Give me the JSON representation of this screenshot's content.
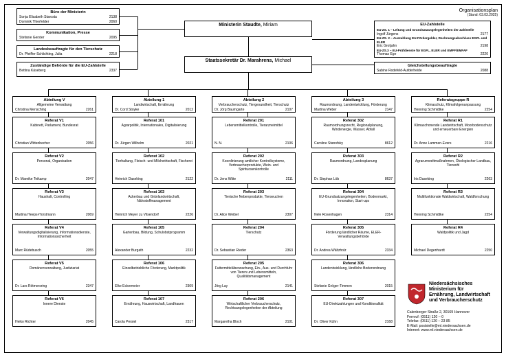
{
  "plan_title": "Organisationsplan",
  "plan_date": "(Stand: 03.03.2025)",
  "minister_box": {
    "title": "Ministerin Staudte, ",
    "title_suffix": "Miriam"
  },
  "staatssekretaer_box": {
    "title": "Staatssekretär Dr. Marahrens, ",
    "title_suffix": "Michael"
  },
  "left1": {
    "title": "Büro der Ministerin",
    "p1": "Sonja Elisabeth Starosta",
    "n1": "2138",
    "p2": "Dominik Thierfelder",
    "n2": "2060"
  },
  "left2": {
    "title": "Kommunikation, Presse",
    "p1": "Stefanie Gerster",
    "n1": "2095"
  },
  "left3": {
    "title": "Landesbeauftragte für den Tierschutz",
    "p1": "Dr. Pfeiffer-Schlichting, Julia",
    "n1": "2218"
  },
  "left4": {
    "title": "Zuständige Behörde für die EU-Zahlstelle",
    "p1": "Bettina Käseberg",
    "n1": "2337"
  },
  "eu": {
    "title": "EU-Zahlstelle",
    "r1t": "EU-ZS. 1 – Leitung und Grundsatzangelegenheiten der Zahlstelle",
    "r1p": "Ingolf Jürgens",
    "r1n": "2177",
    "r2t": "EU-ZS. 2 – Auszahlung EU-Fördergelder, Rechnungsabschluss EGFL und ELER",
    "r2p": "Eric Grotjahn",
    "r2n": "2198",
    "r3t": "EU-ZS.3 – EU-Prüfdienste für EGFL, ELER und EMFF/EMFAF",
    "r3p": "Thomas Ege",
    "r3n": "2220"
  },
  "gleich": {
    "title": "Gleichstellungsbeauftragte",
    "p1": "Sabine Rodefeld-Aufderheide",
    "n1": "2088"
  },
  "colV": {
    "title": "Abteilung V",
    "subtitle": "Allgemeine Verwaltung",
    "lead": "Christina Mensching",
    "lead_n": "2261",
    "r": [
      {
        "t": "Referat V1",
        "s": "Kabinett, Parlament, Bundesrat",
        "p": "Christian Wittenbecher",
        "n": "2056"
      },
      {
        "t": "Referat V2",
        "s": "Personal, Organisation",
        "p": "Dr. Mareike Teikamp",
        "n": "2047"
      },
      {
        "t": "Referat V3",
        "s": "Haushalt, Controlling",
        "p": "Martina Heeps-Horstmann",
        "n": "2069"
      },
      {
        "t": "Referat V4",
        "s": "Verwaltungsdigitalisierung, Informationsdienste, Informationssicherheit",
        "p": "Marc Rüdebusch",
        "n": "2055"
      },
      {
        "t": "Referat V5",
        "s": "Domänenverwaltung, Justiziariat",
        "p": "Dr. Lars Rötmersring",
        "n": "2347"
      },
      {
        "t": "Referat V6",
        "s": "Innere Dienste",
        "p": "Heiko Richter",
        "n": "2045"
      }
    ]
  },
  "col1": {
    "title": "Abteilung 1",
    "subtitle": "Landwirtschaft, Ernährung",
    "lead": "Dr. Cord Stoyke",
    "lead_n": "2012",
    "r": [
      {
        "t": "Referat 101",
        "s": "Agrarpolitik, Internationales, Digitalisierung",
        "p": "Dr. Jürgen Wilhelm",
        "n": "2021"
      },
      {
        "t": "Referat 102",
        "s": "Tierhaltung, Fleisch- und Milchwirtschaft, Fischerei",
        "p": "Heinrich Daseking",
        "n": "2122"
      },
      {
        "t": "Referat 103",
        "s": "Ackerbau und Grünlandwirtschaft, Nährstoffmanagement",
        "p": "Heinrich Meyer zu Vilsendorf",
        "n": "2226"
      },
      {
        "t": "Referat 105",
        "s": "Gartenbau, Bildung, Schulobstprogramm",
        "p": "Alexander Burgath",
        "n": "2232"
      },
      {
        "t": "Referat 106",
        "s": "Einzelbetriebliche Förderung, Marktpolitik",
        "p": "Elke Eckermeier",
        "n": "2309"
      },
      {
        "t": "Referat 107",
        "s": "Ernährung, Hauswirtschaft, Landfrauen",
        "p": "Carola Persiel",
        "n": "2317"
      }
    ]
  },
  "col2": {
    "title": "Abteilung 2",
    "subtitle": "Verbraucherschutz, Tiergesundheit, Tierschutz",
    "lead": "Dr. Jörg Baumgarte",
    "lead_n": "2107",
    "r": [
      {
        "t": "Referat 201",
        "s": "Lebensmittelkontrolle, Tierarzneimittel",
        "p": "N. N.",
        "n": "2106"
      },
      {
        "t": "Referat 202",
        "s": "Koordinierung amtlicher Kontrollsysteme, Verbraucherprodukte, Wein- und Spirituosenkontrolle",
        "p": "Dr. Jens Witte",
        "n": "2111"
      },
      {
        "t": "Referat 203",
        "s": "Tierische Nebenprodukte, Tierseuchen",
        "p": "Dr. Alice Weibel",
        "n": "2307"
      },
      {
        "t": "Referat 204",
        "s": "Tierschutz",
        "p": "Dr. Sebastian Rieder",
        "n": "2363"
      },
      {
        "t": "Referat 205",
        "s": "Futtermittelüberwachung, Ein-, Aus- und Durchfuhr von Tieren und Lebensmitteln, Qualitätsmanagement",
        "p": "Jörg Lay",
        "n": "2141"
      },
      {
        "t": "Referat 206",
        "s": "Wirtschaftlicher Verbraucherschutz, Rechtsangelegenheiten der Abteilung",
        "p": "Margaretha Bloch",
        "n": "2101"
      }
    ]
  },
  "col3": {
    "title": "Abteilung 3",
    "subtitle": "Raumordnung, Landentwicklung, Förderung",
    "lead": "Martina Weber",
    "lead_n": "2147",
    "r": [
      {
        "t": "Referat 302",
        "s": "Raumordnungsrecht, Regionalplanung, Windenergie, Wasser, Abfall",
        "p": "Caroline Stanofsky",
        "n": "8612"
      },
      {
        "t": "Referat 303",
        "s": "Raumordnung, Landesplanung",
        "p": "Dr. Stephan Löb",
        "n": "8637"
      },
      {
        "t": "Referat 304",
        "s": "EU-Grundsatzangelegenheiten, Bodenmarkt, Innovation, Start-ups",
        "p": "Nele Rosenhagen",
        "n": "2314"
      },
      {
        "t": "Referat 305",
        "s": "Förderung ländlicher Räume, ELER-Verwaltungsbehörde",
        "p": "Dr. Andrea Wältzholz",
        "n": "2334"
      },
      {
        "t": "Referat 306",
        "s": "Landentwicklung, ländliche Bodenordnung",
        "p": "Stefanie Gröger-Timmen",
        "n": "2015"
      },
      {
        "t": "Referat 307",
        "s": "EU-Direktzahlungen und Konditionalität",
        "p": "Dr. Oliver Kühn",
        "n": "2168"
      }
    ]
  },
  "colR": {
    "title": "Referatsgruppe R",
    "subtitle": "Klimaschutz, Klimafolgenanpassung",
    "lead": "Henning Schmidtke",
    "lead_n": "2254",
    "r": [
      {
        "t": "Referat R1",
        "s": "Klimaschonende Landwirtschaft, Moorbodenschutz und erneuerbare Energien",
        "p": "Dr. Anne Lammen-Evers",
        "n": "2216"
      },
      {
        "t": "Referat R2",
        "s": "Agrarumweltmaßnahmen, Ökologischer Landbau, Tierwohl",
        "p": "Iris Daseking",
        "n": "2263"
      },
      {
        "t": "Referat R3",
        "s": "Multifunktionale Waldwirtschaft, Waldforschung",
        "p": "Henning Schmidtke",
        "n": "2254"
      },
      {
        "t": "Referat R4",
        "s": "Waldpolitik und Jagd",
        "p": "Michael Degenhardt",
        "n": "2250"
      }
    ]
  },
  "ministry_name": "Niedersächsisches\nMinisterium für\nErnährung, Landwirtschaft\nund Verbraucherschutz",
  "footer": {
    "addr": "Calenberger Straße 2, 30169 Hannover",
    "tel": "Fernruf: (0511) 120 – 0",
    "fax": "Telefax: (0511) 120 – 23 85",
    "mail": "E-Mail: poststelle@ml.niedersachsen.de",
    "web": "Internet: www.ml.niedersachsen.de"
  },
  "crest_color": "#c1272d"
}
